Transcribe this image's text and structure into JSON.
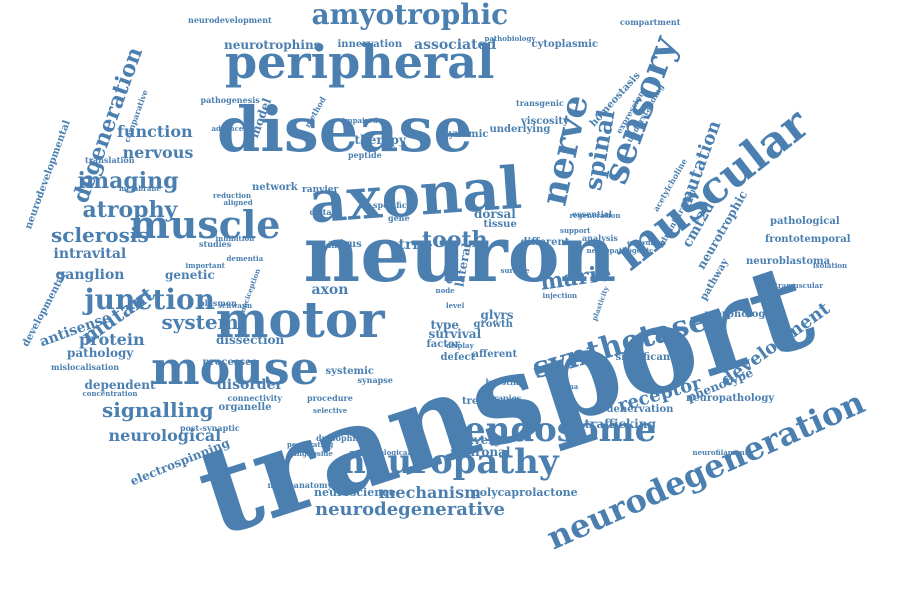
{
  "color": "#4a7fb0",
  "words": [
    "transport",
    "neuron",
    "disease",
    "axonal",
    "peripheral",
    "motor",
    "mouse",
    "muscular",
    "neuropathy",
    "endosome",
    "neurodegeneration",
    "sensory",
    "muscle",
    "nerve",
    "amyotrophic",
    "synthetase",
    "junction",
    "spinal",
    "imaging",
    "atrophy",
    "degeneration",
    "sclerosis",
    "signalling",
    "system",
    "mutant",
    "protein",
    "receptor",
    "neurological",
    "mechanism",
    "neurodegenerative",
    "development",
    "mutation",
    "tooth",
    "marie",
    "axon",
    "function",
    "nervous",
    "neurotrophins",
    "associated",
    "disorder",
    "dissection",
    "pathology",
    "ganglion",
    "intravital",
    "genetic",
    "antisense",
    "dependent",
    "trafficking",
    "phenotype",
    "homeostasis",
    "electrospinning",
    "delivery",
    "neuronal",
    "neuroscience",
    "polycaprolactone",
    "innervation",
    "cytoplasmic",
    "therapy",
    "model",
    "dynamic",
    "underlying",
    "viscosity",
    "lateral",
    "cell",
    "trna",
    "dorsal",
    "survival",
    "growth",
    "afferent",
    "treatment",
    "denervation",
    "cmt2d",
    "neurotrophic",
    "pathway",
    "pathological",
    "frontotemporal",
    "neuroblastoma",
    "morphological",
    "significant",
    "neuropathology",
    "organelle",
    "connectivity",
    "processes",
    "plasmon",
    "studies",
    "translation",
    "comparative",
    "neurodevelopmental",
    "developmental",
    "mislocalisation",
    "concentration",
    "post-synaptic",
    "neuroanatomy",
    "drosophila",
    "ganglioside",
    "penetrating",
    "procedure",
    "boosting",
    "therapies",
    "methodological",
    "systemic",
    "synapse",
    "factor",
    "defect",
    "type",
    "glyrs",
    "virus",
    "bdnf",
    "tissue",
    "different",
    "essential",
    "analysis",
    "administration",
    "acetylcholine",
    "expression",
    "understanding",
    "pathogenesis",
    "advanced",
    "method",
    "network",
    "ranvier",
    "membrane",
    "inhibition",
    "reduction",
    "aligned",
    "distal",
    "specific",
    "gene",
    "peptide",
    "impaired",
    "transgenic",
    "pathobiology",
    "compartment",
    "neurodevelopment",
    "dementia",
    "important",
    "nociception",
    "schwann",
    "level",
    "node",
    "display",
    "selective",
    "neurofilament",
    "glioma",
    "plasticity",
    "regeneration",
    "injection",
    "crowding",
    "isolation",
    "intramuscular",
    "neuropathogenic",
    "surface",
    "support",
    "activity"
  ]
}
